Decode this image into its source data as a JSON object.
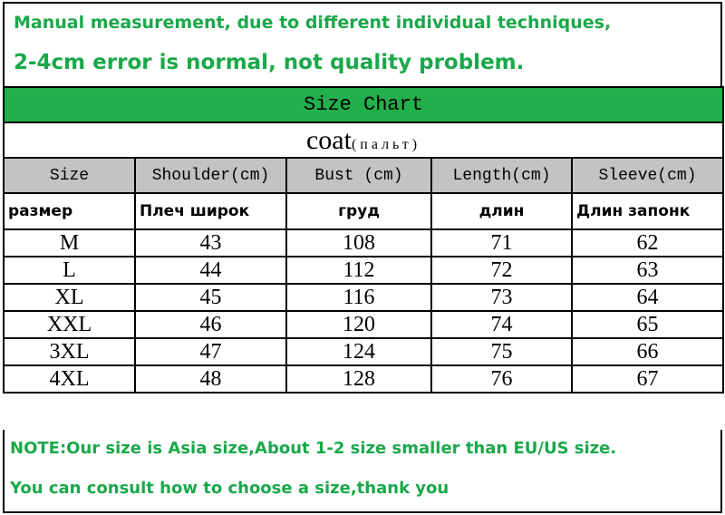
{
  "header": {
    "lines": [
      "Manual measurement, due to different individual techniques,",
      "2-4cm error is normal, not quality problem."
    ]
  },
  "table": {
    "title": "Size Chart",
    "subtitle": "coat",
    "subtitle_note": "(пальт)",
    "columns": [
      "Size",
      "Shoulder(cm)",
      "Bust (cm)",
      "Length(cm)",
      "Sleeve(cm)"
    ],
    "columns_ru": [
      "размер",
      "Плеч широк",
      "груд",
      "длин",
      "Длин запонк"
    ],
    "rows": [
      [
        "M",
        43,
        108,
        71,
        62
      ],
      [
        "L",
        44,
        112,
        72,
        63
      ],
      [
        "XL",
        45,
        116,
        73,
        64
      ],
      [
        "XXL",
        46,
        120,
        74,
        65
      ],
      [
        "3XL",
        47,
        124,
        75,
        66
      ],
      [
        "4XL",
        48,
        128,
        76,
        67
      ]
    ]
  },
  "notes": [
    "NOTE:Our size is Asia size,About 1-2 size smaller than EU/US size.",
    "You can consult how to choose a size,thank you"
  ]
}
